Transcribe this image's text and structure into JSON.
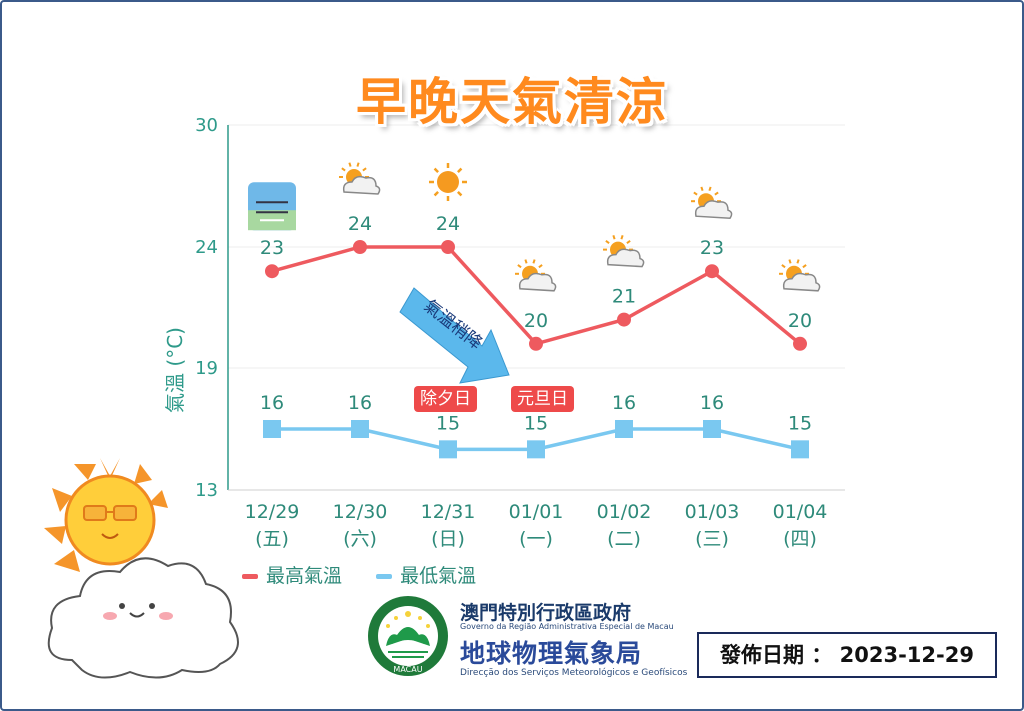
{
  "title": "早晚天氣清涼",
  "chart_data": {
    "type": "line",
    "ylabel": "氣溫 (°C)",
    "yticks": [
      13,
      19,
      24,
      30
    ],
    "ylim": [
      13,
      30
    ],
    "categories": [
      "12/29",
      "12/30",
      "12/31",
      "01/01",
      "01/02",
      "01/03",
      "01/04"
    ],
    "weekdays": [
      "(五)",
      "(六)",
      "(日)",
      "(一)",
      "(二)",
      "(三)",
      "(四)"
    ],
    "weather_icons": [
      "haze-icon",
      "partly-cloudy-icon",
      "sunny-icon",
      "partly-cloudy-icon",
      "partly-cloudy-icon",
      "partly-cloudy-icon",
      "partly-cloudy-icon"
    ],
    "series": [
      {
        "name": "最高氣溫",
        "values": [
          23,
          24,
          24,
          20,
          21,
          23,
          20
        ],
        "color": "#ee5a5f",
        "marker": "circle"
      },
      {
        "name": "最低氣溫",
        "values": [
          16,
          16,
          15,
          15,
          16,
          16,
          15
        ],
        "color": "#7ac8f0",
        "marker": "square"
      }
    ],
    "annotations": {
      "arrow_text": "氣溫稍降",
      "badge_1231": "除夕日",
      "badge_0101": "元旦日"
    },
    "grid": true,
    "legend": "bottom-left"
  },
  "footer": {
    "org_name_zh": "澳門特別行政區政府",
    "org_name_pt": "Governo da Região Administrativa Especial de Macau",
    "bureau_zh": "地球物理氣象局",
    "bureau_pt": "Direcção dos Serviços Meteorológicos e Geofísicos",
    "emblem_text": "MACAU",
    "issue_date": "發佈日期 ： 2023-12-29"
  }
}
